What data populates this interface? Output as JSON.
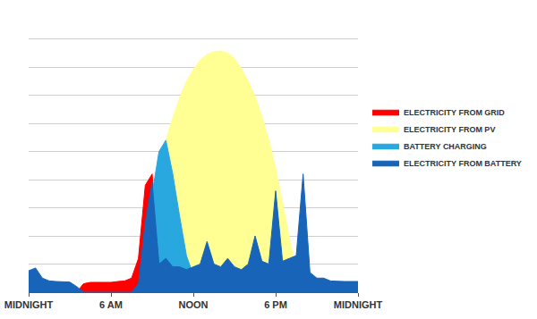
{
  "chart_data": {
    "type": "area",
    "x": [
      0,
      0.5,
      1,
      1.5,
      2,
      2.5,
      3,
      3.5,
      4,
      4.5,
      5,
      5.5,
      6,
      6.5,
      7,
      7.5,
      8,
      8.5,
      9,
      9.5,
      10,
      10.5,
      11,
      11.5,
      12,
      12.5,
      13,
      13.5,
      14,
      14.5,
      15,
      15.5,
      16,
      16.5,
      17,
      17.5,
      18,
      18.5,
      19,
      19.5,
      20,
      20.5,
      21,
      21.5,
      22,
      22.5,
      23,
      23.5,
      24
    ],
    "series": [
      {
        "name": "ELECTRICITY FROM GRID",
        "color": "#ff0000",
        "values": [
          null,
          null,
          null,
          null,
          null,
          null,
          null,
          0,
          0.3,
          0.35,
          0.35,
          0.35,
          0.35,
          0.38,
          0.4,
          0.5,
          1.2,
          3.8,
          4.2,
          1.0,
          0,
          null,
          null,
          null,
          null,
          null,
          null,
          null,
          null,
          null,
          null,
          null,
          null,
          null,
          null,
          null,
          null,
          null,
          null,
          null,
          null,
          null,
          null,
          null,
          null,
          null,
          null,
          null,
          null
        ]
      },
      {
        "name": "ELECTRICITY FROM PV",
        "color": "#ffff94",
        "values": [
          null,
          null,
          null,
          null,
          null,
          null,
          null,
          null,
          null,
          null,
          null,
          null,
          null,
          null,
          null,
          null,
          null,
          null,
          2.0,
          3.8,
          5.4,
          6.2,
          6.9,
          7.5,
          7.9,
          8.25,
          8.45,
          8.55,
          8.57,
          8.5,
          8.3,
          7.95,
          7.5,
          6.95,
          6.25,
          5.4,
          4.4,
          3.2,
          1.9,
          0.7,
          0,
          null,
          null,
          null,
          null,
          null,
          null,
          null,
          null
        ]
      },
      {
        "name": "BATTERY CHARGING",
        "color": "#29a8e0",
        "values": [
          null,
          null,
          null,
          null,
          null,
          null,
          null,
          null,
          null,
          null,
          null,
          null,
          null,
          null,
          null,
          null,
          0,
          1.5,
          3.5,
          5.0,
          5.4,
          4.2,
          2.7,
          1.3,
          0.6,
          0,
          null,
          null,
          null,
          null,
          null,
          null,
          null,
          null,
          null,
          null,
          null,
          null,
          null,
          null,
          null,
          null,
          null,
          null,
          null,
          null,
          null,
          null,
          null
        ]
      },
      {
        "name": "ELECTRICITY FROM BATTERY",
        "color": "#1764b8",
        "values": [
          0.76,
          0.86,
          0.5,
          0.4,
          0.38,
          0.38,
          0.36,
          0.2,
          0,
          0,
          0,
          0,
          0,
          0,
          0,
          0,
          0.3,
          2.5,
          3.9,
          1.0,
          1.2,
          0.9,
          0.9,
          0.8,
          0.9,
          1.0,
          1.8,
          1.0,
          0.9,
          1.2,
          0.9,
          0.8,
          1.0,
          2.0,
          1.1,
          1.0,
          3.6,
          1.1,
          1.2,
          1.3,
          4.2,
          0.7,
          0.5,
          0.5,
          0.4,
          0.38,
          0.38,
          0.38,
          0.38
        ]
      }
    ],
    "xlim": [
      0,
      24
    ],
    "xticks": [
      {
        "value": 0,
        "label": "MIDNIGHT"
      },
      {
        "value": 6,
        "label": "6 AM"
      },
      {
        "value": 12,
        "label": "NOON"
      },
      {
        "value": 18,
        "label": "6 PM"
      },
      {
        "value": 24,
        "label": "MIDNIGHT"
      }
    ],
    "ylim": [
      0,
      10
    ],
    "yticks": [
      0,
      1,
      2,
      3,
      4,
      5,
      6,
      7,
      8,
      9,
      10
    ],
    "grid": true,
    "legend": "right",
    "tick_labels": "x"
  }
}
